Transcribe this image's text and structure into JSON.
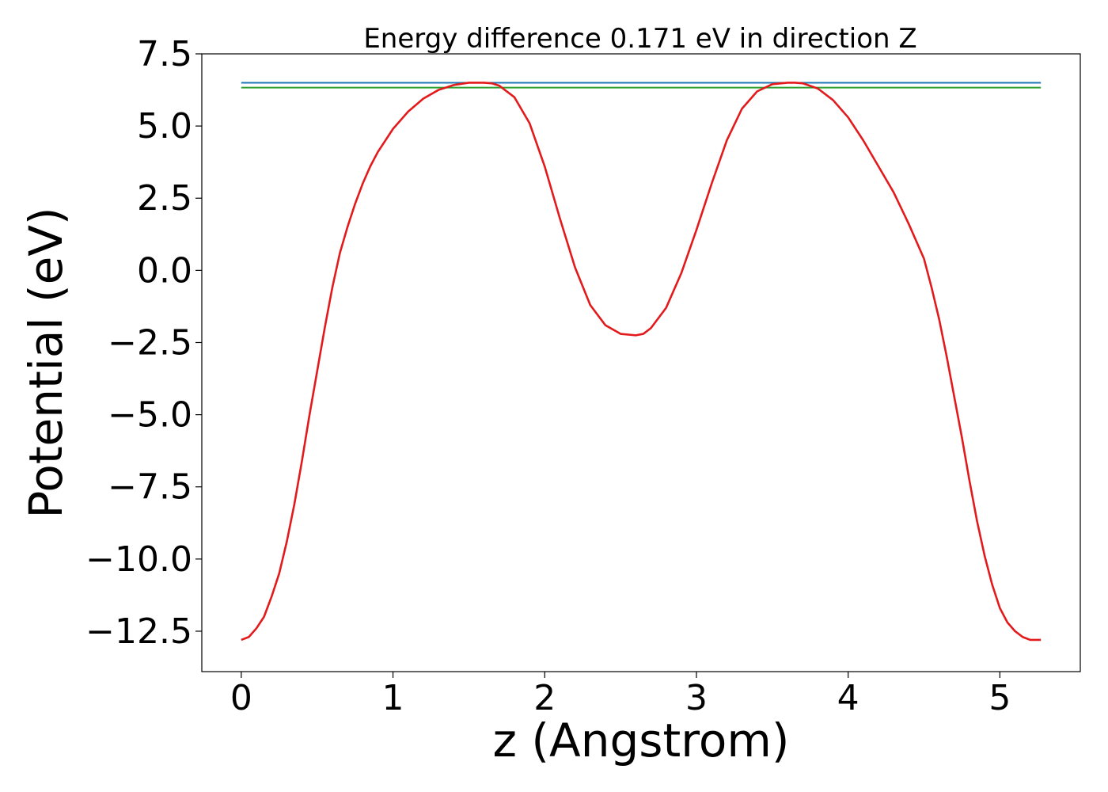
{
  "chart_data": {
    "type": "line",
    "title": "Energy difference 0.171 eV in direction Z",
    "xlabel": "z (Angstrom)",
    "ylabel": "Potential (eV)",
    "xlim": [
      -0.26,
      5.53
    ],
    "ylim": [
      -13.9,
      7.5
    ],
    "xticks": [
      0,
      1,
      2,
      3,
      4,
      5
    ],
    "xtick_labels": [
      "0",
      "1",
      "2",
      "3",
      "4",
      "5"
    ],
    "yticks": [
      7.5,
      5.0,
      2.5,
      0.0,
      -2.5,
      -5.0,
      -7.5,
      -10.0,
      -12.5
    ],
    "ytick_labels": [
      "7.5",
      "5.0",
      "2.5",
      "0.0",
      "−2.5",
      "−5.0",
      "−7.5",
      "−10.0",
      "−12.5"
    ],
    "grid": false,
    "legend": "none",
    "series": [
      {
        "color": "#1f77b4",
        "x": [
          0,
          5.27
        ],
        "y": [
          6.5,
          6.5
        ]
      },
      {
        "color": "#2ca02c",
        "x": [
          0,
          5.27
        ],
        "y": [
          6.33,
          6.33
        ]
      },
      {
        "color": "#e31a1c",
        "x": [
          0,
          0.05,
          0.1,
          0.15,
          0.2,
          0.25,
          0.3,
          0.35,
          0.4,
          0.45,
          0.5,
          0.55,
          0.6,
          0.65,
          0.7,
          0.75,
          0.8,
          0.85,
          0.9,
          1.0,
          1.1,
          1.2,
          1.3,
          1.4,
          1.5,
          1.6,
          1.65,
          1.7,
          1.8,
          1.9,
          2.0,
          2.1,
          2.2,
          2.3,
          2.4,
          2.5,
          2.6,
          2.65,
          2.7,
          2.8,
          2.9,
          3.0,
          3.1,
          3.2,
          3.3,
          3.4,
          3.5,
          3.6,
          3.65,
          3.7,
          3.8,
          3.9,
          4.0,
          4.1,
          4.2,
          4.3,
          4.4,
          4.5,
          4.55,
          4.6,
          4.65,
          4.7,
          4.75,
          4.8,
          4.85,
          4.9,
          4.95,
          5.0,
          5.05,
          5.1,
          5.15,
          5.2,
          5.27
        ],
        "y": [
          -12.8,
          -12.7,
          -12.4,
          -12.0,
          -11.3,
          -10.5,
          -9.4,
          -8.1,
          -6.6,
          -5.0,
          -3.5,
          -2.0,
          -0.6,
          0.6,
          1.5,
          2.3,
          3.0,
          3.6,
          4.1,
          4.9,
          5.5,
          5.95,
          6.25,
          6.42,
          6.5,
          6.5,
          6.48,
          6.4,
          6.0,
          5.1,
          3.6,
          1.8,
          0.1,
          -1.2,
          -1.9,
          -2.2,
          -2.25,
          -2.2,
          -2.0,
          -1.3,
          -0.1,
          1.4,
          3.0,
          4.5,
          5.6,
          6.2,
          6.45,
          6.5,
          6.5,
          6.48,
          6.3,
          5.9,
          5.3,
          4.5,
          3.6,
          2.7,
          1.6,
          0.4,
          -0.6,
          -1.7,
          -3.0,
          -4.4,
          -5.8,
          -7.3,
          -8.7,
          -9.9,
          -10.9,
          -11.7,
          -12.2,
          -12.5,
          -12.7,
          -12.8,
          -12.8
        ]
      }
    ]
  }
}
